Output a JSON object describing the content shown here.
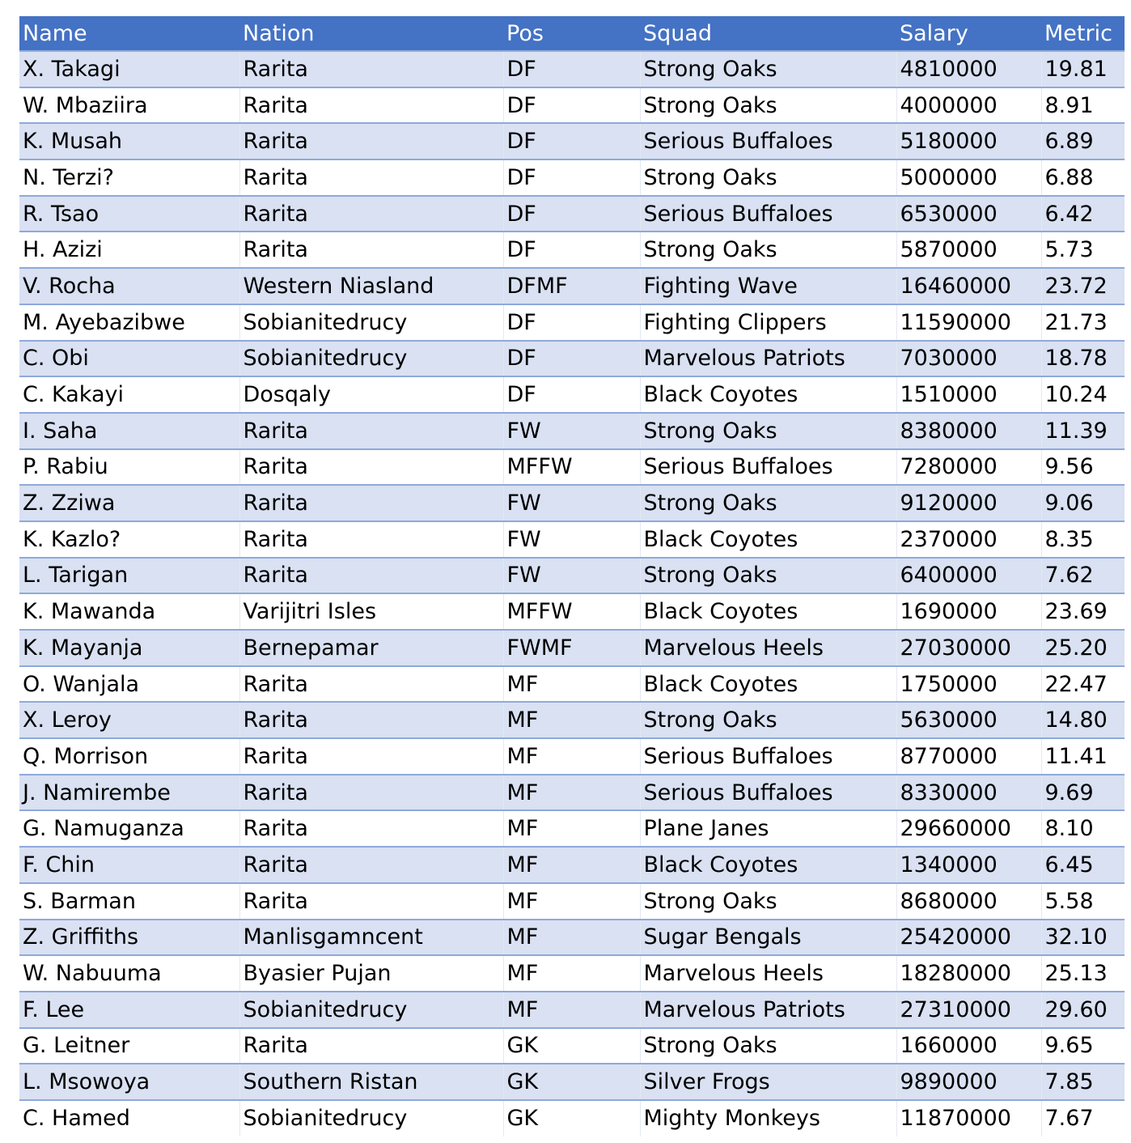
{
  "colors": {
    "header_bg": "#4472c4",
    "header_text": "#ffffff",
    "band_row": "#d9e1f2",
    "plain_row": "#ffffff",
    "row_border": "#8ea9db"
  },
  "table": {
    "headers": [
      "Name",
      "Nation",
      "Pos",
      "Squad",
      "Salary",
      "Metric"
    ],
    "rows": [
      [
        "X. Takagi",
        "Rarita",
        "DF",
        "Strong Oaks",
        "4810000",
        "19.81"
      ],
      [
        "W. Mbaziira",
        "Rarita",
        "DF",
        "Strong Oaks",
        "4000000",
        "8.91"
      ],
      [
        "K. Musah",
        "Rarita",
        "DF",
        "Serious Buffaloes",
        "5180000",
        "6.89"
      ],
      [
        "N. Terzi?",
        "Rarita",
        "DF",
        "Strong Oaks",
        "5000000",
        "6.88"
      ],
      [
        "R. Tsao",
        "Rarita",
        "DF",
        "Serious Buffaloes",
        "6530000",
        "6.42"
      ],
      [
        "H. Azizi",
        "Rarita",
        "DF",
        "Strong Oaks",
        "5870000",
        "5.73"
      ],
      [
        "V. Rocha",
        "Western Niasland",
        "DFMF",
        "Fighting Wave",
        "16460000",
        "23.72"
      ],
      [
        "M. Ayebazibwe",
        "Sobianitedrucy",
        "DF",
        "Fighting Clippers",
        "11590000",
        "21.73"
      ],
      [
        "C. Obi",
        "Sobianitedrucy",
        "DF",
        "Marvelous Patriots",
        "7030000",
        "18.78"
      ],
      [
        "C. Kakayi",
        "Dosqaly",
        "DF",
        "Black Coyotes",
        "1510000",
        "10.24"
      ],
      [
        "I. Saha",
        "Rarita",
        "FW",
        "Strong Oaks",
        "8380000",
        "11.39"
      ],
      [
        "P. Rabiu",
        "Rarita",
        "MFFW",
        "Serious Buffaloes",
        "7280000",
        "9.56"
      ],
      [
        "Z. Zziwa",
        "Rarita",
        "FW",
        "Strong Oaks",
        "9120000",
        "9.06"
      ],
      [
        "K. Kazlo?",
        "Rarita",
        "FW",
        "Black Coyotes",
        "2370000",
        "8.35"
      ],
      [
        "L. Tarigan",
        "Rarita",
        "FW",
        "Strong Oaks",
        "6400000",
        "7.62"
      ],
      [
        "K. Mawanda",
        "Varijitri Isles",
        "MFFW",
        "Black Coyotes",
        "1690000",
        "23.69"
      ],
      [
        "K. Mayanja",
        "Bernepamar",
        "FWMF",
        "Marvelous Heels",
        "27030000",
        "25.20"
      ],
      [
        "O. Wanjala",
        "Rarita",
        "MF",
        "Black Coyotes",
        "1750000",
        "22.47"
      ],
      [
        "X. Leroy",
        "Rarita",
        "MF",
        "Strong Oaks",
        "5630000",
        "14.80"
      ],
      [
        "Q. Morrison",
        "Rarita",
        "MF",
        "Serious Buffaloes",
        "8770000",
        "11.41"
      ],
      [
        "J. Namirembe",
        "Rarita",
        "MF",
        "Serious Buffaloes",
        "8330000",
        "9.69"
      ],
      [
        "G. Namuganza",
        "Rarita",
        "MF",
        "Plane Janes",
        "29660000",
        "8.10"
      ],
      [
        "F. Chin",
        "Rarita",
        "MF",
        "Black Coyotes",
        "1340000",
        "6.45"
      ],
      [
        "S. Barman",
        "Rarita",
        "MF",
        "Strong Oaks",
        "8680000",
        "5.58"
      ],
      [
        "Z. Griffiths",
        "Manlisgamncent",
        "MF",
        "Sugar Bengals",
        "25420000",
        "32.10"
      ],
      [
        "W. Nabuuma",
        "Byasier Pujan",
        "MF",
        "Marvelous Heels",
        "18280000",
        "25.13"
      ],
      [
        "F. Lee",
        "Sobianitedrucy",
        "MF",
        "Marvelous Patriots",
        "27310000",
        "29.60"
      ],
      [
        "G. Leitner",
        "Rarita",
        "GK",
        "Strong Oaks",
        "1660000",
        "9.65"
      ],
      [
        "L. Msowoya",
        "Southern Ristan",
        "GK",
        "Silver Frogs",
        "9890000",
        "7.85"
      ],
      [
        "C. Hamed",
        "Sobianitedrucy",
        "GK",
        "Mighty Monkeys",
        "11870000",
        "7.67"
      ]
    ]
  }
}
